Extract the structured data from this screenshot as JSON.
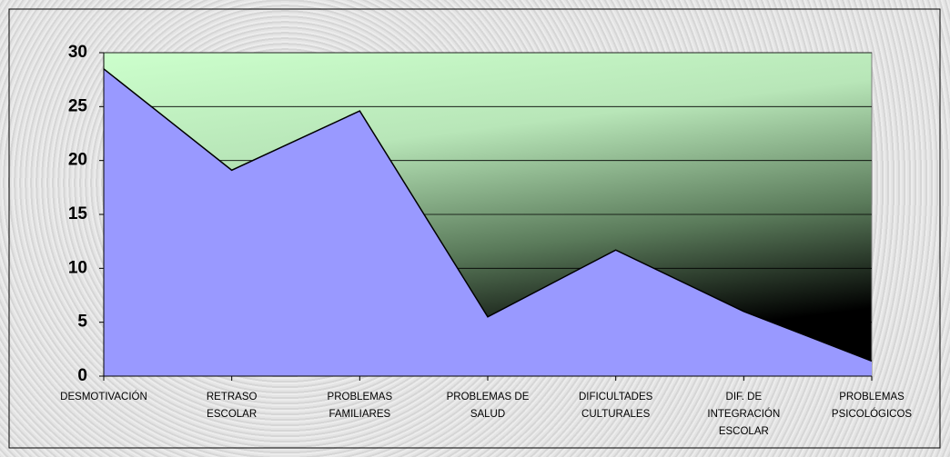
{
  "chart_data": {
    "type": "area",
    "categories": [
      "DESMOTIVACIÓN",
      "RETRASO ESCOLAR",
      "PROBLEMAS FAMILIARES",
      "PROBLEMAS DE SALUD",
      "DIFICULTADES CULTURALES",
      "DIF. DE INTEGRACIÓN ESCOLAR",
      "PROBLEMAS PSICOLÓGICOS"
    ],
    "values": [
      28.5,
      19.1,
      24.6,
      5.5,
      11.7,
      6.0,
      1.4
    ],
    "color": "#9999ff",
    "ylim": [
      0,
      30
    ],
    "yticks": [
      0,
      5,
      10,
      15,
      20,
      25,
      30
    ],
    "grid": true
  }
}
